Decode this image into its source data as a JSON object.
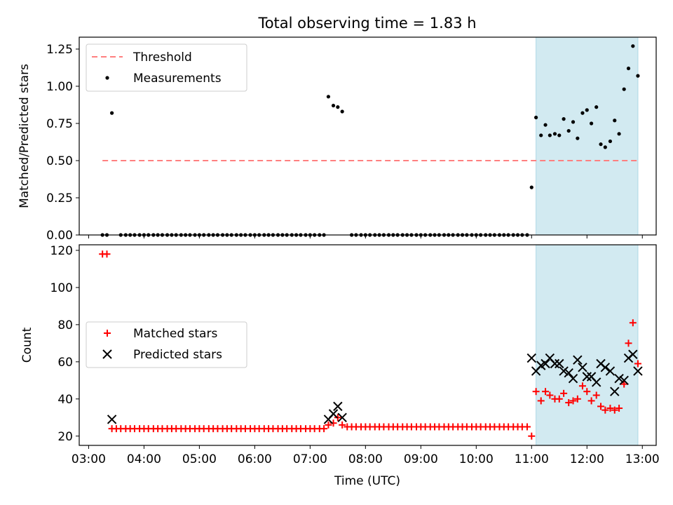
{
  "figure": {
    "title": "Total observing time = 1.83 h"
  },
  "chart_data": [
    {
      "type": "scatter",
      "ylabel": "Matched/Predicted stars",
      "xlabel": "",
      "xlim": [
        2.83,
        13.25
      ],
      "ylim": [
        0,
        1.33
      ],
      "yticks": [
        0.0,
        0.25,
        0.5,
        0.75,
        1.0,
        1.25
      ],
      "ytick_labels": [
        "0.00",
        "0.25",
        "0.50",
        "0.75",
        "1.00",
        "1.25"
      ],
      "xticks": [
        3,
        4,
        5,
        6,
        7,
        8,
        9,
        10,
        11,
        12,
        13
      ],
      "shaded_span": [
        11.08,
        12.92
      ],
      "shaded_color": "#add8e6",
      "legend_position": "upper left",
      "threshold": {
        "name": "Threshold",
        "value": 0.5,
        "x_range": [
          3.25,
          12.92
        ],
        "color": "#ff7f7f",
        "style": "dashed"
      },
      "series": [
        {
          "name": "Measurements",
          "marker": "dot",
          "color": "#000000",
          "points": [
            [
              3.25,
              0
            ],
            [
              3.33,
              0
            ],
            [
              3.42,
              0.82
            ],
            [
              3.58,
              0
            ],
            [
              3.67,
              0
            ],
            [
              3.75,
              0
            ],
            [
              3.83,
              0
            ],
            [
              3.92,
              0
            ],
            [
              4.0,
              0
            ],
            [
              4.08,
              0
            ],
            [
              4.17,
              0
            ],
            [
              4.25,
              0
            ],
            [
              4.33,
              0
            ],
            [
              4.42,
              0
            ],
            [
              4.5,
              0
            ],
            [
              4.58,
              0
            ],
            [
              4.67,
              0
            ],
            [
              4.75,
              0
            ],
            [
              4.83,
              0
            ],
            [
              4.92,
              0
            ],
            [
              5.0,
              0
            ],
            [
              5.08,
              0
            ],
            [
              5.17,
              0
            ],
            [
              5.25,
              0
            ],
            [
              5.33,
              0
            ],
            [
              5.42,
              0
            ],
            [
              5.5,
              0
            ],
            [
              5.58,
              0
            ],
            [
              5.67,
              0
            ],
            [
              5.75,
              0
            ],
            [
              5.83,
              0
            ],
            [
              5.92,
              0
            ],
            [
              6.0,
              0
            ],
            [
              6.08,
              0
            ],
            [
              6.17,
              0
            ],
            [
              6.25,
              0
            ],
            [
              6.33,
              0
            ],
            [
              6.42,
              0
            ],
            [
              6.5,
              0
            ],
            [
              6.58,
              0
            ],
            [
              6.67,
              0
            ],
            [
              6.75,
              0
            ],
            [
              6.83,
              0
            ],
            [
              6.92,
              0
            ],
            [
              7.0,
              0
            ],
            [
              7.08,
              0
            ],
            [
              7.17,
              0
            ],
            [
              7.25,
              0
            ],
            [
              7.33,
              0.93
            ],
            [
              7.42,
              0.87
            ],
            [
              7.5,
              0.86
            ],
            [
              7.58,
              0.83
            ],
            [
              7.75,
              0
            ],
            [
              7.83,
              0
            ],
            [
              7.92,
              0
            ],
            [
              8.0,
              0
            ],
            [
              8.08,
              0
            ],
            [
              8.17,
              0
            ],
            [
              8.25,
              0
            ],
            [
              8.33,
              0
            ],
            [
              8.42,
              0
            ],
            [
              8.5,
              0
            ],
            [
              8.58,
              0
            ],
            [
              8.67,
              0
            ],
            [
              8.75,
              0
            ],
            [
              8.83,
              0
            ],
            [
              8.92,
              0
            ],
            [
              9.0,
              0
            ],
            [
              9.08,
              0
            ],
            [
              9.17,
              0
            ],
            [
              9.25,
              0
            ],
            [
              9.33,
              0
            ],
            [
              9.42,
              0
            ],
            [
              9.5,
              0
            ],
            [
              9.58,
              0
            ],
            [
              9.67,
              0
            ],
            [
              9.75,
              0
            ],
            [
              9.83,
              0
            ],
            [
              9.92,
              0
            ],
            [
              10.0,
              0
            ],
            [
              10.08,
              0
            ],
            [
              10.17,
              0
            ],
            [
              10.25,
              0
            ],
            [
              10.33,
              0
            ],
            [
              10.42,
              0
            ],
            [
              10.5,
              0
            ],
            [
              10.58,
              0
            ],
            [
              10.67,
              0
            ],
            [
              10.75,
              0
            ],
            [
              10.83,
              0
            ],
            [
              10.92,
              0
            ],
            [
              11.0,
              0.32
            ],
            [
              11.08,
              0.79
            ],
            [
              11.17,
              0.67
            ],
            [
              11.25,
              0.74
            ],
            [
              11.33,
              0.67
            ],
            [
              11.42,
              0.68
            ],
            [
              11.5,
              0.67
            ],
            [
              11.58,
              0.78
            ],
            [
              11.67,
              0.7
            ],
            [
              11.75,
              0.76
            ],
            [
              11.83,
              0.65
            ],
            [
              11.92,
              0.82
            ],
            [
              12.0,
              0.84
            ],
            [
              12.08,
              0.75
            ],
            [
              12.17,
              0.86
            ],
            [
              12.25,
              0.61
            ],
            [
              12.33,
              0.59
            ],
            [
              12.42,
              0.63
            ],
            [
              12.5,
              0.77
            ],
            [
              12.58,
              0.68
            ],
            [
              12.67,
              0.98
            ],
            [
              12.75,
              1.12
            ],
            [
              12.83,
              1.27
            ],
            [
              12.92,
              1.07
            ]
          ]
        }
      ]
    },
    {
      "type": "scatter",
      "ylabel": "Count",
      "xlabel": "Time (UTC)",
      "xlim": [
        2.83,
        13.25
      ],
      "ylim": [
        15,
        123
      ],
      "yticks": [
        20,
        40,
        60,
        80,
        100,
        120
      ],
      "ytick_labels": [
        "20",
        "40",
        "60",
        "80",
        "100",
        "120"
      ],
      "xticks": [
        3,
        4,
        5,
        6,
        7,
        8,
        9,
        10,
        11,
        12,
        13
      ],
      "xtick_labels": [
        "03:00",
        "04:00",
        "05:00",
        "06:00",
        "07:00",
        "08:00",
        "09:00",
        "10:00",
        "11:00",
        "12:00",
        "13:00"
      ],
      "shaded_span": [
        11.08,
        12.92
      ],
      "shaded_color": "#add8e6",
      "legend_position": "center left",
      "series": [
        {
          "name": "Matched stars",
          "marker": "plus",
          "color": "#ff0000",
          "points": [
            [
              3.25,
              118
            ],
            [
              3.33,
              118
            ],
            [
              3.42,
              24
            ],
            [
              3.5,
              24
            ],
            [
              3.58,
              24
            ],
            [
              3.67,
              24
            ],
            [
              3.75,
              24
            ],
            [
              3.83,
              24
            ],
            [
              3.92,
              24
            ],
            [
              4.0,
              24
            ],
            [
              4.08,
              24
            ],
            [
              4.17,
              24
            ],
            [
              4.25,
              24
            ],
            [
              4.33,
              24
            ],
            [
              4.42,
              24
            ],
            [
              4.5,
              24
            ],
            [
              4.58,
              24
            ],
            [
              4.67,
              24
            ],
            [
              4.75,
              24
            ],
            [
              4.83,
              24
            ],
            [
              4.92,
              24
            ],
            [
              5.0,
              24
            ],
            [
              5.08,
              24
            ],
            [
              5.17,
              24
            ],
            [
              5.25,
              24
            ],
            [
              5.33,
              24
            ],
            [
              5.42,
              24
            ],
            [
              5.5,
              24
            ],
            [
              5.58,
              24
            ],
            [
              5.67,
              24
            ],
            [
              5.75,
              24
            ],
            [
              5.83,
              24
            ],
            [
              5.92,
              24
            ],
            [
              6.0,
              24
            ],
            [
              6.08,
              24
            ],
            [
              6.17,
              24
            ],
            [
              6.25,
              24
            ],
            [
              6.33,
              24
            ],
            [
              6.42,
              24
            ],
            [
              6.5,
              24
            ],
            [
              6.58,
              24
            ],
            [
              6.67,
              24
            ],
            [
              6.75,
              24
            ],
            [
              6.83,
              24
            ],
            [
              6.92,
              24
            ],
            [
              7.0,
              24
            ],
            [
              7.08,
              24
            ],
            [
              7.17,
              24
            ],
            [
              7.25,
              24
            ],
            [
              7.33,
              26
            ],
            [
              7.42,
              27
            ],
            [
              7.5,
              30
            ],
            [
              7.58,
              26
            ],
            [
              7.67,
              25
            ],
            [
              7.75,
              25
            ],
            [
              7.83,
              25
            ],
            [
              7.92,
              25
            ],
            [
              8.0,
              25
            ],
            [
              8.08,
              25
            ],
            [
              8.17,
              25
            ],
            [
              8.25,
              25
            ],
            [
              8.33,
              25
            ],
            [
              8.42,
              25
            ],
            [
              8.5,
              25
            ],
            [
              8.58,
              25
            ],
            [
              8.67,
              25
            ],
            [
              8.75,
              25
            ],
            [
              8.83,
              25
            ],
            [
              8.92,
              25
            ],
            [
              9.0,
              25
            ],
            [
              9.08,
              25
            ],
            [
              9.17,
              25
            ],
            [
              9.25,
              25
            ],
            [
              9.33,
              25
            ],
            [
              9.42,
              25
            ],
            [
              9.5,
              25
            ],
            [
              9.58,
              25
            ],
            [
              9.67,
              25
            ],
            [
              9.75,
              25
            ],
            [
              9.83,
              25
            ],
            [
              9.92,
              25
            ],
            [
              10.0,
              25
            ],
            [
              10.08,
              25
            ],
            [
              10.17,
              25
            ],
            [
              10.25,
              25
            ],
            [
              10.33,
              25
            ],
            [
              10.42,
              25
            ],
            [
              10.5,
              25
            ],
            [
              10.58,
              25
            ],
            [
              10.67,
              25
            ],
            [
              10.75,
              25
            ],
            [
              10.83,
              25
            ],
            [
              10.92,
              25
            ],
            [
              11.0,
              20
            ],
            [
              11.08,
              44
            ],
            [
              11.17,
              39
            ],
            [
              11.25,
              44
            ],
            [
              11.33,
              42
            ],
            [
              11.42,
              40
            ],
            [
              11.5,
              40
            ],
            [
              11.58,
              43
            ],
            [
              11.67,
              38
            ],
            [
              11.75,
              39
            ],
            [
              11.83,
              40
            ],
            [
              11.92,
              47
            ],
            [
              12.0,
              44
            ],
            [
              12.08,
              39
            ],
            [
              12.17,
              42
            ],
            [
              12.25,
              36
            ],
            [
              12.33,
              34
            ],
            [
              12.42,
              35
            ],
            [
              12.5,
              34
            ],
            [
              12.58,
              35
            ],
            [
              12.67,
              48
            ],
            [
              12.75,
              70
            ],
            [
              12.83,
              81
            ],
            [
              12.92,
              59
            ]
          ]
        },
        {
          "name": "Predicted stars",
          "marker": "x",
          "color": "#000000",
          "points": [
            [
              3.42,
              29
            ],
            [
              7.33,
              29
            ],
            [
              7.42,
              32
            ],
            [
              7.5,
              36
            ],
            [
              7.58,
              30
            ],
            [
              11.0,
              62
            ],
            [
              11.08,
              55
            ],
            [
              11.17,
              58
            ],
            [
              11.25,
              59
            ],
            [
              11.33,
              62
            ],
            [
              11.42,
              59
            ],
            [
              11.5,
              59
            ],
            [
              11.58,
              55
            ],
            [
              11.67,
              54
            ],
            [
              11.75,
              51
            ],
            [
              11.83,
              61
            ],
            [
              11.92,
              57
            ],
            [
              12.0,
              52
            ],
            [
              12.08,
              52
            ],
            [
              12.17,
              49
            ],
            [
              12.25,
              59
            ],
            [
              12.33,
              57
            ],
            [
              12.42,
              55
            ],
            [
              12.5,
              44
            ],
            [
              12.58,
              51
            ],
            [
              12.67,
              50
            ],
            [
              12.75,
              62
            ],
            [
              12.83,
              64
            ],
            [
              12.92,
              55
            ]
          ]
        }
      ]
    }
  ]
}
